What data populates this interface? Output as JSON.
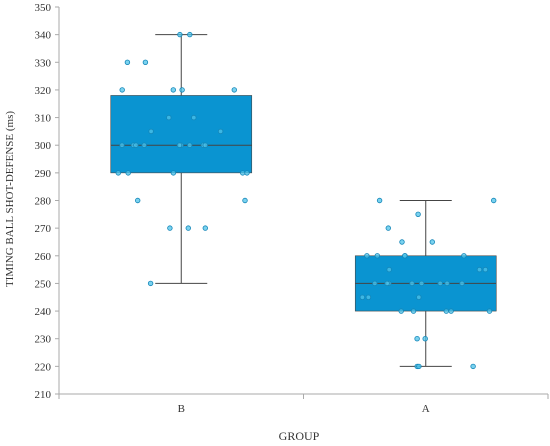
{
  "chart_data": {
    "type": "box",
    "title": "",
    "xlabel": "GROUP",
    "ylabel": "TIMING BALL SHOT-DEFENSE  (ms)",
    "ylim": [
      210,
      350
    ],
    "yticks": [
      210,
      220,
      230,
      240,
      250,
      260,
      270,
      280,
      290,
      300,
      310,
      320,
      330,
      340,
      350
    ],
    "grid": false,
    "categories": [
      "B",
      "A"
    ],
    "colors": {
      "box": "#0a94d1",
      "point_fill": "#4dc3ea",
      "point_stroke": "#1486b8",
      "line": "#444444",
      "axis": "#aaaaaa"
    },
    "boxes": [
      {
        "name": "B",
        "whisker_low": 250,
        "q1": 290,
        "median": 300,
        "q3": 318,
        "whisker_high": 340
      },
      {
        "name": "A",
        "whisker_low": 220,
        "q1": 240,
        "median": 250,
        "q3": 260,
        "whisker_high": 280
      }
    ],
    "points": [
      {
        "group": "B",
        "values": [
          340,
          340,
          330,
          330,
          320,
          320,
          320,
          320,
          310,
          310,
          305,
          305,
          300,
          300,
          300,
          300,
          300,
          300,
          300,
          300,
          300,
          290,
          290,
          290,
          290,
          290,
          280,
          280,
          270,
          270,
          270,
          250
        ]
      },
      {
        "group": "A",
        "values": [
          280,
          280,
          275,
          270,
          265,
          265,
          260,
          260,
          260,
          260,
          260,
          255,
          255,
          255,
          250,
          250,
          250,
          250,
          250,
          250,
          250,
          250,
          245,
          245,
          245,
          240,
          240,
          240,
          240,
          240,
          230,
          230,
          220,
          220,
          220
        ]
      }
    ]
  }
}
